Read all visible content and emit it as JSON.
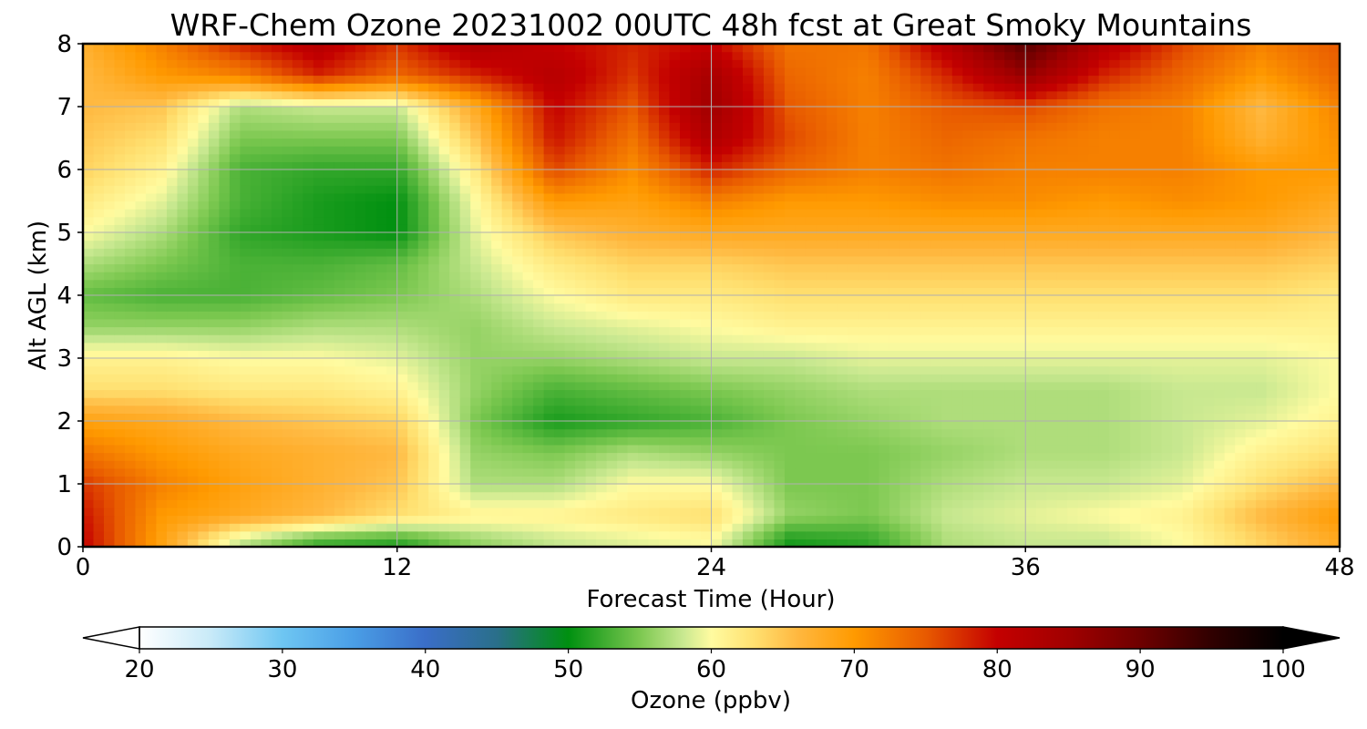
{
  "chart_data": {
    "type": "heatmap",
    "title": "WRF-Chem Ozone  20231002 00UTC 48h fcst at Great Smoky Mountains",
    "xlabel": "Forecast Time (Hour)",
    "ylabel": "Alt AGL (km)",
    "xlim": [
      0,
      48
    ],
    "ylim": [
      0,
      8
    ],
    "x_ticks": [
      0,
      12,
      24,
      36,
      48
    ],
    "y_ticks": [
      0,
      1,
      2,
      3,
      4,
      5,
      6,
      7,
      8
    ],
    "grid": true,
    "x": [
      0,
      3,
      6,
      9,
      12,
      15,
      18,
      21,
      24,
      27,
      30,
      33,
      36,
      39,
      42,
      45,
      48
    ],
    "y": [
      0.1,
      0.5,
      1.0,
      1.5,
      2.0,
      2.5,
      3.0,
      3.5,
      4.0,
      4.5,
      5.0,
      5.5,
      6.0,
      6.5,
      7.0,
      7.5,
      8.0
    ],
    "z": [
      [
        80,
        69,
        58,
        53,
        52,
        56,
        58,
        59,
        60,
        51,
        52,
        57,
        58,
        58,
        60,
        64,
        68
      ],
      [
        79,
        70,
        68,
        66,
        63,
        61,
        61,
        62,
        63,
        56,
        55,
        58,
        59,
        60,
        61,
        66,
        70
      ],
      [
        77,
        72,
        69,
        67,
        65,
        57,
        57,
        60,
        60,
        55,
        55,
        57,
        58,
        58,
        59,
        63,
        66
      ],
      [
        73,
        70,
        68,
        67,
        66,
        56,
        55,
        57,
        56,
        55,
        55,
        56,
        57,
        57,
        58,
        61,
        63
      ],
      [
        69,
        68,
        66,
        65,
        64,
        55,
        51,
        52,
        53,
        55,
        56,
        57,
        57,
        57,
        58,
        59,
        61
      ],
      [
        63,
        63,
        62,
        62,
        61,
        56,
        53,
        54,
        55,
        56,
        57,
        57,
        57,
        57,
        58,
        58,
        60
      ],
      [
        61,
        61,
        60,
        60,
        59,
        56,
        56,
        57,
        58,
        58,
        59,
        59,
        59,
        59,
        59,
        59,
        60
      ],
      [
        56,
        56,
        56,
        57,
        57,
        56,
        58,
        59,
        60,
        61,
        61,
        61,
        61,
        61,
        61,
        61,
        61
      ],
      [
        54,
        53,
        53,
        54,
        55,
        57,
        60,
        62,
        62,
        63,
        63,
        63,
        63,
        63,
        63,
        63,
        62
      ],
      [
        57,
        55,
        53,
        53,
        54,
        58,
        62,
        64,
        64,
        65,
        65,
        65,
        65,
        65,
        65,
        65,
        64
      ],
      [
        60,
        57,
        52,
        51,
        50,
        59,
        65,
        67,
        68,
        68,
        68,
        68,
        68,
        68,
        68,
        68,
        66
      ],
      [
        62,
        59,
        53,
        51,
        50,
        60,
        70,
        69,
        72,
        70,
        70,
        71,
        71,
        70,
        71,
        70,
        68
      ],
      [
        64,
        61,
        53,
        52,
        52,
        62,
        76,
        71,
        78,
        74,
        72,
        73,
        72,
        72,
        72,
        70,
        70
      ],
      [
        65,
        63,
        55,
        55,
        55,
        65,
        79,
        73,
        83,
        76,
        72,
        74,
        73,
        72,
        72,
        67,
        71
      ],
      [
        66,
        65,
        57,
        58,
        58,
        68,
        80,
        75,
        85,
        75,
        72,
        75,
        76,
        73,
        72,
        66,
        72
      ],
      [
        66,
        70,
        72,
        78,
        74,
        78,
        82,
        77,
        84,
        74,
        72,
        78,
        86,
        78,
        74,
        70,
        74
      ],
      [
        67,
        72,
        78,
        82,
        77,
        83,
        80,
        78,
        80,
        73,
        73,
        82,
        92,
        82,
        76,
        72,
        75
      ]
    ],
    "colorbar": {
      "label": "Ozone  (ppbv)",
      "min": 20,
      "max": 100,
      "ticks": [
        20,
        30,
        40,
        50,
        60,
        70,
        80,
        90,
        100
      ],
      "extend": "both",
      "orientation": "horizontal",
      "stops": [
        [
          20,
          "#ffffff"
        ],
        [
          25,
          "#c8eaf8"
        ],
        [
          30,
          "#6ec6f2"
        ],
        [
          35,
          "#4a9ee6"
        ],
        [
          40,
          "#3a6ec8"
        ],
        [
          45,
          "#2a6f8a"
        ],
        [
          50,
          "#009010"
        ],
        [
          55,
          "#7cc850"
        ],
        [
          58,
          "#c8e890"
        ],
        [
          60,
          "#fffba0"
        ],
        [
          63,
          "#ffe070"
        ],
        [
          66,
          "#ffb840"
        ],
        [
          70,
          "#ff9a00"
        ],
        [
          75,
          "#e85a00"
        ],
        [
          80,
          "#c40000"
        ],
        [
          85,
          "#a00000"
        ],
        [
          90,
          "#6e0000"
        ],
        [
          95,
          "#300000"
        ],
        [
          100,
          "#000000"
        ]
      ]
    }
  }
}
